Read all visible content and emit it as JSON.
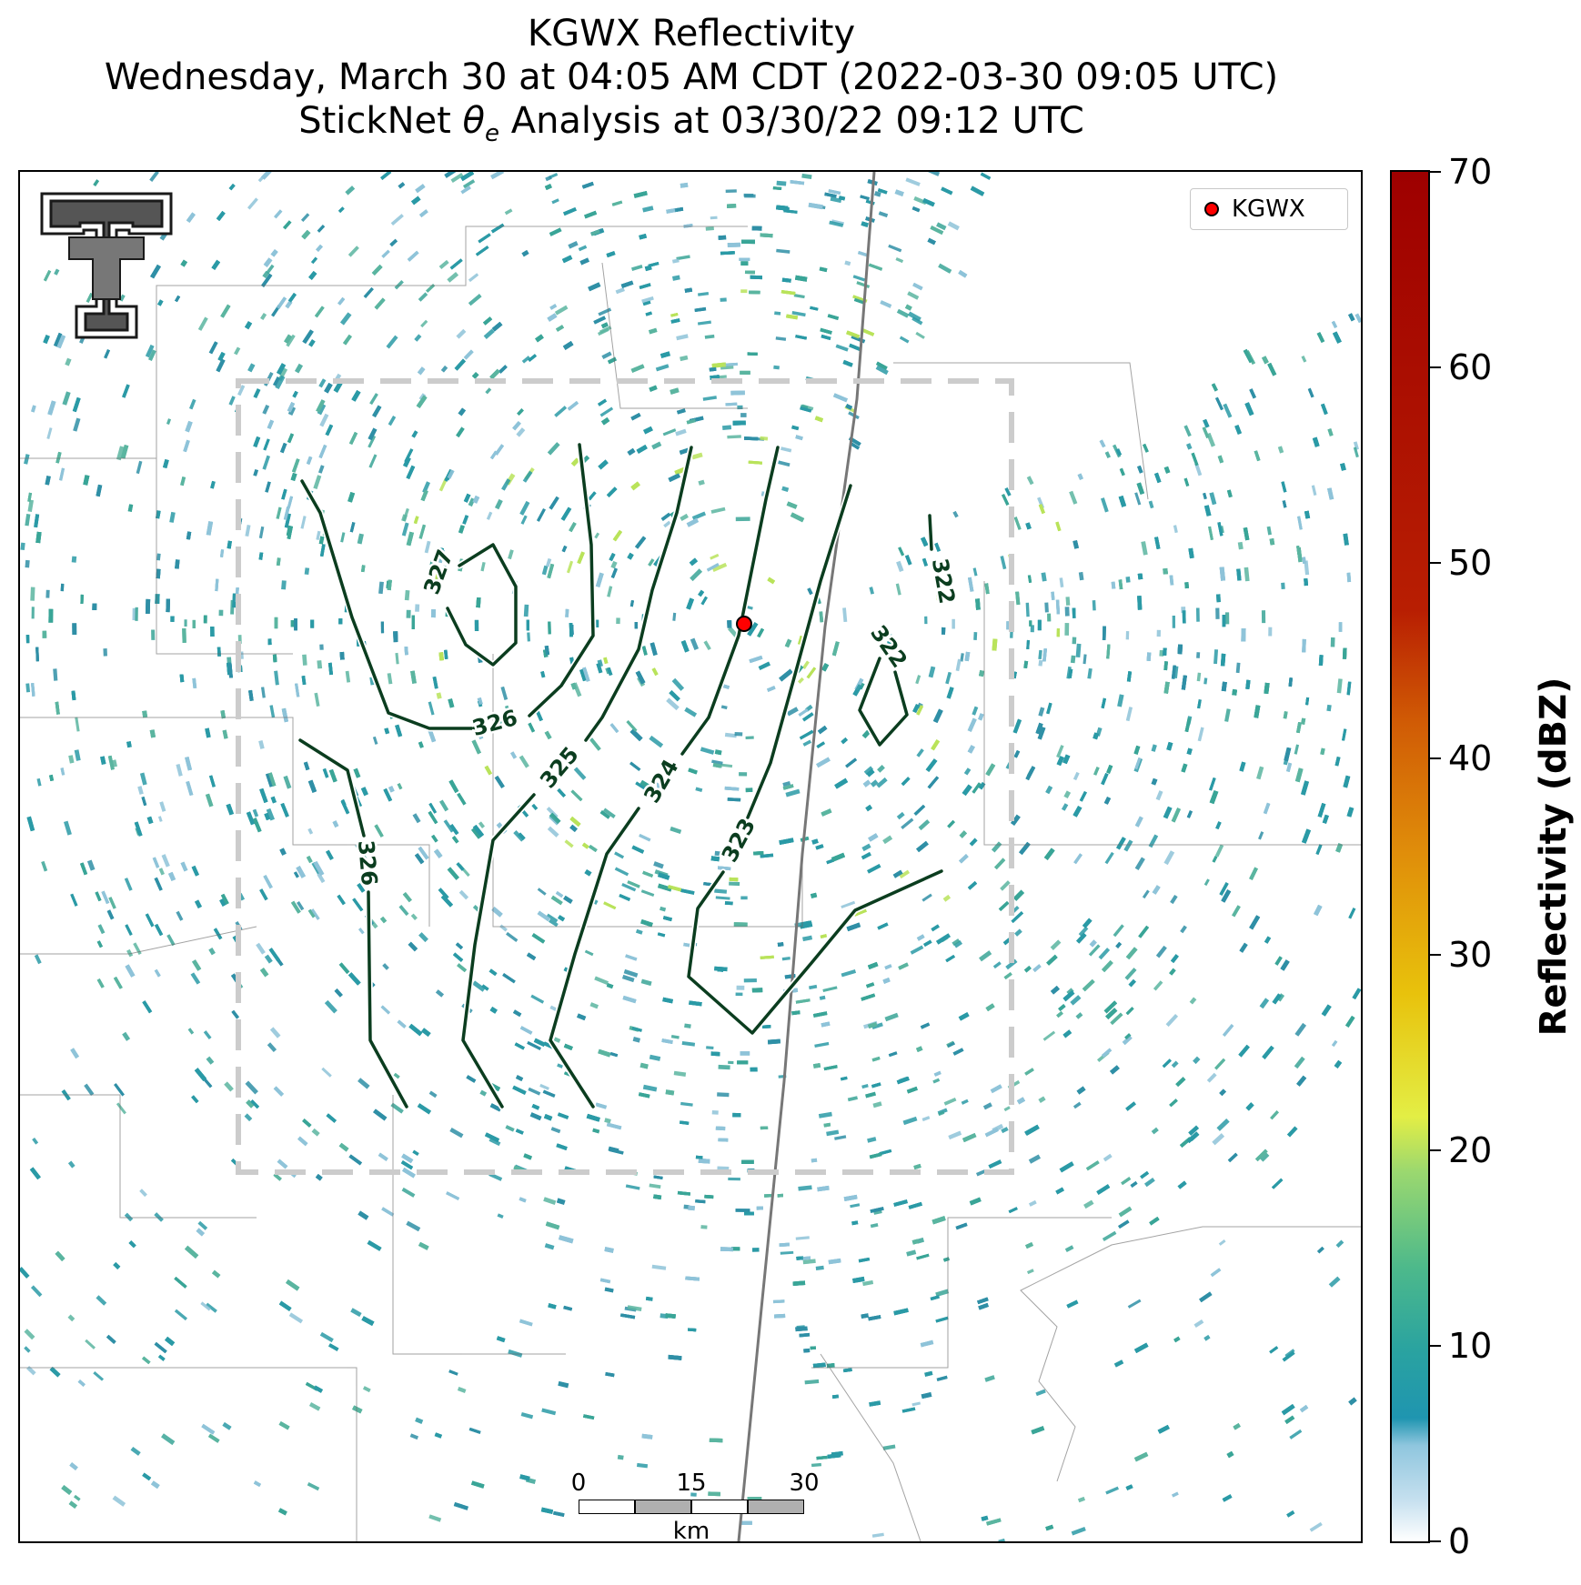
{
  "header": {
    "title_line1": "KGWX Reflectivity",
    "title_line2": "Wednesday, March 30 at 04:05 AM CDT (2022-03-30 09:05 UTC)",
    "title_line3_prefix": "StickNet ",
    "title_line3_theta": "θ",
    "title_line3_sub": "e",
    "title_line3_suffix": " Analysis at 03/30/22 09:12 UTC"
  },
  "legend": {
    "label": "KGWX",
    "marker_color": "#ff0000"
  },
  "contours": {
    "line_color": "#0b3d1f",
    "labels": [
      "327",
      "326",
      "326",
      "325",
      "324",
      "323",
      "322",
      "322"
    ]
  },
  "colorbar": {
    "title": "Reflectivity (dBZ)",
    "min": 0,
    "max": 70,
    "ticks": [
      "0",
      "10",
      "20",
      "30",
      "40",
      "50",
      "60",
      "70"
    ]
  },
  "scalebar": {
    "labels": [
      "0",
      "15",
      "30"
    ],
    "unit": "km"
  },
  "colors": {
    "radar_main": "#2a9aa6",
    "radar_light": "#8ec3d8",
    "radar_bright": "#b9e35a",
    "analysis_box": "#cccccc"
  }
}
